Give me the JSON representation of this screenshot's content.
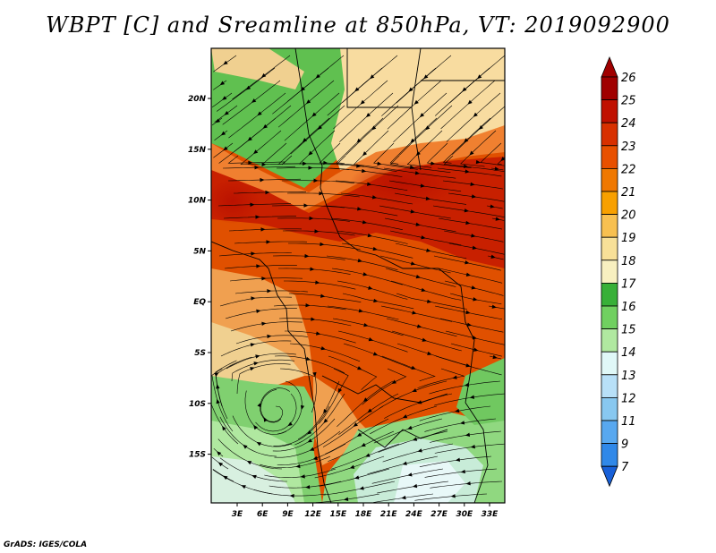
{
  "title": "WBPT [C] and Sreamline at 850hPa, VT: 2019092900",
  "footer": "GrADS: IGES/COLA",
  "map": {
    "lon_labels": [
      "3E",
      "6E",
      "9E",
      "12E",
      "15E",
      "18E",
      "21E",
      "24E",
      "27E",
      "30E",
      "33E"
    ],
    "lat_labels": [
      "20N",
      "15N",
      "10N",
      "5N",
      "EQ",
      "5S",
      "10S",
      "15S"
    ]
  },
  "colorbar": {
    "labels": [
      "26",
      "25",
      "24",
      "23",
      "22",
      "21",
      "20",
      "19",
      "18",
      "17",
      "16",
      "15",
      "14",
      "13",
      "12",
      "11",
      "9",
      "7"
    ],
    "colors": [
      "#a00000",
      "#c01000",
      "#d83000",
      "#e85000",
      "#f07800",
      "#f8a000",
      "#f8c050",
      "#f8e098",
      "#f8f0c0",
      "#38b038",
      "#70d060",
      "#b0e8a0",
      "#e0f8f8",
      "#b8e0f8",
      "#88c8f0",
      "#58a8f0",
      "#3088e8",
      "#1860d8"
    ]
  }
}
